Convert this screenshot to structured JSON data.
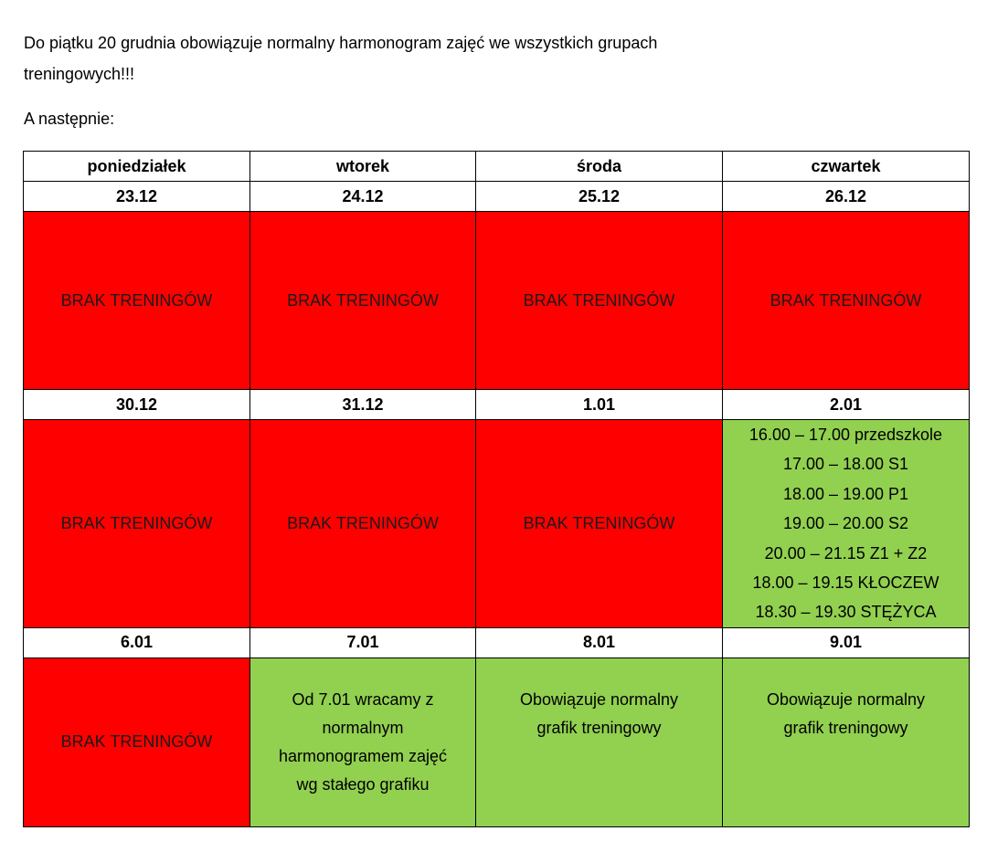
{
  "intro": {
    "line1": "Do piątku 20 grudnia obowiązuje normalny harmonogram zajęć we wszystkich grupach",
    "line2": "treningowych!!!",
    "after": "A następnie:"
  },
  "table": {
    "headers": [
      "poniedziałek",
      "wtorek",
      "środa",
      "czwartek"
    ],
    "week1": {
      "dates": [
        "23.12",
        "24.12",
        "25.12",
        "26.12"
      ],
      "cells": [
        "BRAK TRENINGÓW",
        "BRAK TRENINGÓW",
        "BRAK TRENINGÓW",
        "BRAK TRENINGÓW"
      ]
    },
    "week2": {
      "dates": [
        "30.12",
        "31.12",
        "1.01",
        "2.01"
      ],
      "cells": [
        "BRAK TRENINGÓW",
        "BRAK TRENINGÓW",
        "BRAK TRENINGÓW"
      ],
      "thursday_schedule": [
        "16.00 – 17.00 przedszkole",
        "17.00 – 18.00 S1",
        "18.00 – 19.00 P1",
        "19.00 – 20.00 S2",
        "20.00 – 21.15 Z1 + Z2",
        "18.00 – 19.15 KŁOCZEW",
        "18.30 – 19.30 STĘŻYCA"
      ]
    },
    "week3": {
      "dates": [
        "6.01",
        "7.01",
        "8.01",
        "9.01"
      ],
      "cells": [
        "BRAK TRENINGÓW",
        [
          "Od 7.01 wracamy z",
          "normalnym",
          "harmonogramem zajęć",
          "wg stałego grafiku"
        ],
        [
          "Obowiązuje normalny",
          "grafik treningowy"
        ],
        [
          "Obowiązuje normalny",
          "grafik treningowy"
        ]
      ]
    }
  },
  "colors": {
    "no_training": "#ff0000",
    "training": "#92d050"
  }
}
